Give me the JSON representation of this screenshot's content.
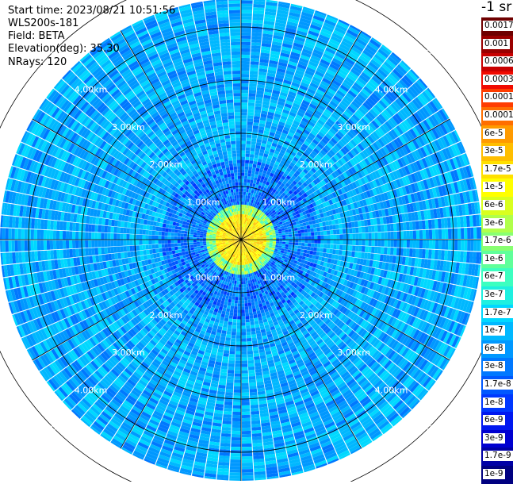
{
  "header": {
    "start_time": "Start time: 2023/08/21 10:51:56",
    "device": "WLS200s-181",
    "field": "Field: BETA",
    "elevation": "Elevation(deg): 35.30",
    "nrays": "NRays: 120"
  },
  "colorbar": {
    "unit": "-1 sr",
    "labels": [
      "0.0017",
      "0.001",
      "0.0006",
      "0.0003",
      "0.00017",
      "0.0001",
      "6e-5",
      "3e-5",
      "1.7e-5",
      "1e-5",
      "6e-6",
      "3e-6",
      "1.7e-6",
      "1e-6",
      "6e-7",
      "3e-7",
      "1.7e-7",
      "1e-7",
      "6e-8",
      "3e-8",
      "1.7e-8",
      "1e-8",
      "6e-9",
      "3e-9",
      "1.7e-9",
      "1e-9"
    ],
    "colors": [
      "#6e0000",
      "#9a0000",
      "#c80000",
      "#f00a00",
      "#ff3c00",
      "#ff6e00",
      "#ff9a00",
      "#ffbe00",
      "#ffe000",
      "#ffff00",
      "#d9ff1f",
      "#b0ff4a",
      "#88ff72",
      "#60ff9a",
      "#3cffc0",
      "#1ef0e0",
      "#00d8ff",
      "#00b8ff",
      "#0098ff",
      "#0078ff",
      "#0058ff",
      "#0038ff",
      "#0018f0",
      "#0000d0",
      "#0000a6",
      "#000080"
    ]
  },
  "chart_data": {
    "type": "heatmap",
    "projection": "polar PPI",
    "field": "BETA",
    "units": "-1 sr",
    "n_rays": 120,
    "elevation_deg": 35.3,
    "range_rings_km": [
      1.0,
      2.0,
      3.0,
      4.0,
      5.0
    ],
    "ring_labels": [
      "1.00km",
      "2.00km",
      "3.00km",
      "4.00km",
      "5.00km"
    ],
    "spoke_angles_deg": [
      0,
      30,
      60,
      90,
      120,
      150,
      180,
      210,
      240,
      270,
      300,
      330
    ],
    "color_scale": {
      "min": 1e-09,
      "max": 0.0017,
      "log": true,
      "tick_labels": [
        "0.0017",
        "0.001",
        "0.0006",
        "0.0003",
        "0.00017",
        "0.0001",
        "6e-5",
        "3e-5",
        "1.7e-5",
        "1e-5",
        "6e-6",
        "3e-6",
        "1.7e-6",
        "1e-6",
        "6e-7",
        "3e-7",
        "1.7e-7",
        "1e-7",
        "6e-8",
        "3e-8",
        "1.7e-8",
        "1e-8",
        "6e-9",
        "3e-9",
        "1.7e-9",
        "1e-9"
      ]
    },
    "pattern": {
      "near_range_km": [
        0.0,
        0.6
      ],
      "near_range_beta": "1e-5 to 3e-5",
      "mid_range_km": [
        0.6,
        1.6
      ],
      "mid_range_beta": "1e-8 to 3e-7",
      "far_range_km": [
        1.6,
        5.8
      ],
      "far_range_beta": "3e-8 to 1.7e-7"
    }
  }
}
